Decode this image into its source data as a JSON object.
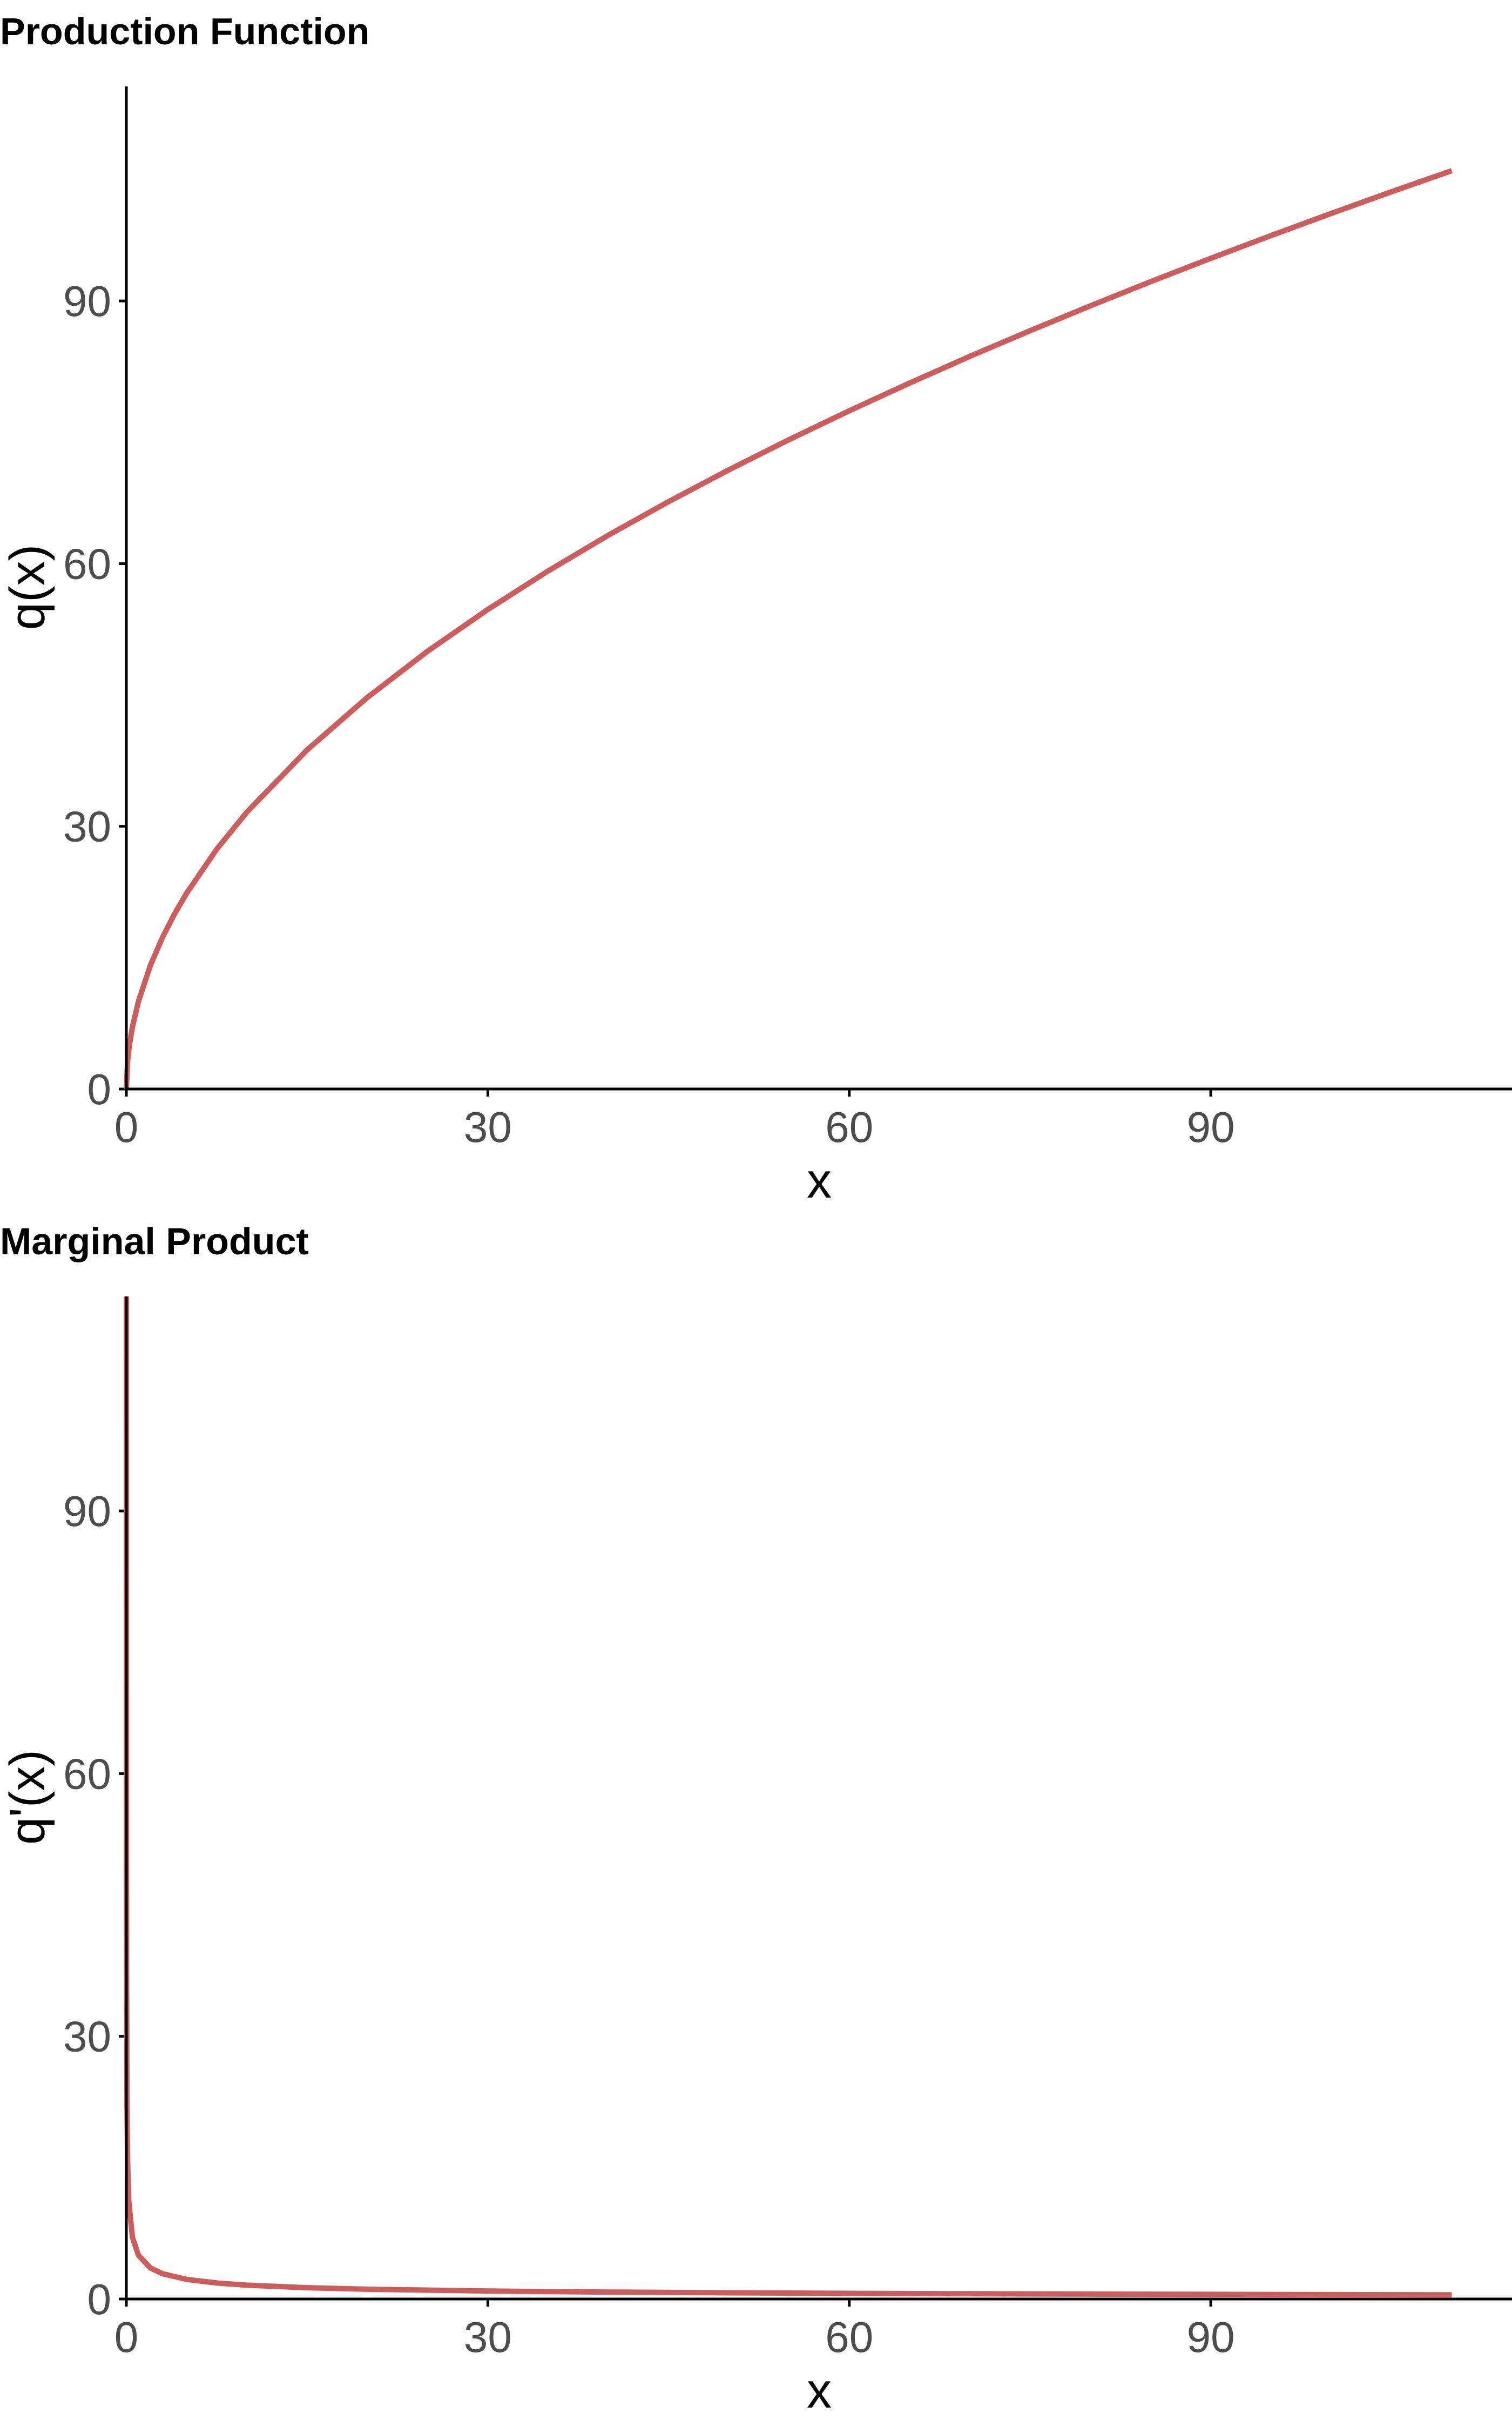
{
  "chart_data": [
    {
      "type": "line",
      "title": "Production Function",
      "xlabel": "x",
      "ylabel": "q(x)",
      "xlim": [
        0,
        115
      ],
      "ylim": [
        0,
        114.5
      ],
      "x_ticks": [
        0,
        30,
        60,
        90
      ],
      "y_ticks": [
        0,
        30,
        60,
        90
      ],
      "grid": false,
      "legend": "none",
      "series": [
        {
          "color": "#cd5c5c",
          "x": [
            0,
            0.1,
            0.25,
            0.5,
            1,
            2,
            3,
            4,
            5,
            7.5,
            10,
            15,
            20,
            25,
            30,
            35,
            40,
            45,
            50,
            55,
            60,
            65,
            70,
            75,
            80,
            85,
            90,
            95,
            100,
            105,
            110
          ],
          "y": [
            0,
            3.16,
            5.0,
            7.07,
            10.0,
            14.14,
            17.32,
            20.0,
            22.36,
            27.39,
            31.62,
            38.73,
            44.72,
            50.0,
            54.77,
            59.16,
            63.25,
            67.08,
            70.71,
            74.16,
            77.46,
            80.62,
            83.67,
            86.6,
            89.44,
            92.2,
            94.87,
            97.47,
            100.0,
            102.47,
            104.88
          ]
        }
      ]
    },
    {
      "type": "line",
      "title": "Marginal Product",
      "xlabel": "x",
      "ylabel": "q'(x)",
      "xlim": [
        0,
        115
      ],
      "ylim": [
        0,
        114.5
      ],
      "x_ticks": [
        0,
        30,
        60,
        90
      ],
      "y_ticks": [
        0,
        30,
        60,
        90
      ],
      "grid": false,
      "legend": "none",
      "series": [
        {
          "color": "#cd5c5c",
          "x": [
            0.0019,
            0.003,
            0.005,
            0.01,
            0.02,
            0.05,
            0.1,
            0.2,
            0.5,
            1,
            2,
            3,
            5,
            7.5,
            10,
            15,
            20,
            30,
            40,
            50,
            60,
            70,
            80,
            90,
            100,
            110
          ],
          "y": [
            114.5,
            91.29,
            70.71,
            50.0,
            35.36,
            22.36,
            15.81,
            11.18,
            7.07,
            5.0,
            3.54,
            2.89,
            2.24,
            1.83,
            1.58,
            1.29,
            1.12,
            0.91,
            0.79,
            0.71,
            0.65,
            0.6,
            0.56,
            0.53,
            0.5,
            0.48
          ]
        }
      ]
    }
  ]
}
